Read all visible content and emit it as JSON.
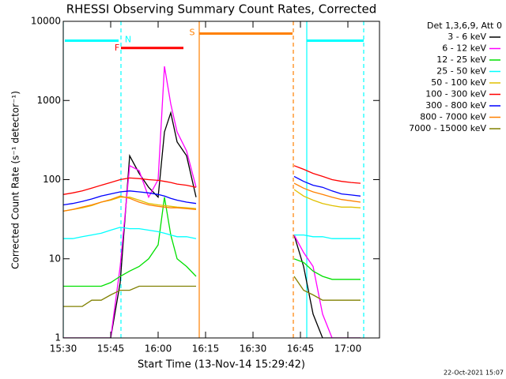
{
  "chart_data": {
    "type": "line",
    "title": "RHESSI Observing Summary Count Rates, Corrected",
    "x_label": "Start Time (13-Nov-14 15:29:42)",
    "y_label": "Corrected Count Rate (s⁻¹ detector⁻¹)",
    "legend_title": "Det 1,3,6,9, Att 0",
    "footer": "22-Oct-2021 15:07",
    "log_y": true,
    "xlim": [
      930,
      1030
    ],
    "ylim": [
      1,
      10000
    ],
    "xticks": [
      {
        "value": 930,
        "label": "15:30"
      },
      {
        "value": 945,
        "label": "15:45"
      },
      {
        "value": 960,
        "label": "16:00"
      },
      {
        "value": 975,
        "label": "16:15"
      },
      {
        "value": 990,
        "label": "16:30"
      },
      {
        "value": 1005,
        "label": "16:45"
      },
      {
        "value": 1020,
        "label": "17:00"
      }
    ],
    "yticks": [
      1,
      10,
      100,
      1000,
      10000
    ],
    "x": [
      930,
      933,
      936,
      939,
      942,
      945,
      948,
      951,
      954,
      957,
      960,
      962,
      964,
      966,
      969,
      972,
      990,
      1003,
      1006,
      1009,
      1012,
      1015,
      1018,
      1021,
      1024
    ],
    "series": [
      {
        "name": "3 - 6 keV",
        "color": "#000000",
        "values": [
          1,
          1,
          1,
          1,
          1,
          1,
          5,
          200,
          120,
          80,
          60,
          400,
          700,
          300,
          200,
          60,
          null,
          20,
          8,
          2,
          1,
          1,
          1,
          1,
          1
        ]
      },
      {
        "name": "6 - 12 keV",
        "color": "#ff00ff",
        "values": [
          1,
          1,
          1,
          1,
          1,
          1,
          8,
          150,
          130,
          60,
          100,
          2700,
          900,
          400,
          230,
          80,
          null,
          20,
          12,
          8,
          2,
          1,
          1,
          1,
          1
        ]
      },
      {
        "name": "12 - 25 keV",
        "color": "#00e000",
        "values": [
          4.5,
          4.5,
          4.5,
          4.5,
          4.5,
          5,
          6,
          7,
          8,
          10,
          15,
          60,
          20,
          10,
          8,
          6,
          null,
          10,
          9,
          7,
          6,
          5.5,
          5.5,
          5.5,
          5.5
        ]
      },
      {
        "name": "25 - 50 keV",
        "color": "#00ffff",
        "values": [
          18,
          18,
          19,
          20,
          21,
          23,
          25,
          24,
          24,
          23,
          22,
          21,
          20,
          19,
          19,
          18,
          null,
          20,
          20,
          19,
          19,
          18,
          18,
          18,
          18
        ]
      },
      {
        "name": "50 - 100 keV",
        "color": "#e0c000",
        "values": [
          40,
          42,
          44,
          47,
          52,
          55,
          60,
          60,
          55,
          50,
          48,
          47,
          46,
          45,
          44,
          43,
          null,
          75,
          62,
          55,
          50,
          47,
          45,
          45,
          44
        ]
      },
      {
        "name": "100 - 300 keV",
        "color": "#ff0000",
        "values": [
          65,
          68,
          72,
          78,
          85,
          92,
          100,
          105,
          103,
          100,
          98,
          95,
          92,
          88,
          85,
          80,
          null,
          150,
          135,
          120,
          110,
          100,
          95,
          92,
          90
        ]
      },
      {
        "name": "300 - 800 keV",
        "color": "#0000ff",
        "values": [
          48,
          50,
          53,
          57,
          62,
          66,
          70,
          72,
          70,
          68,
          65,
          62,
          58,
          55,
          52,
          50,
          null,
          110,
          95,
          85,
          80,
          72,
          66,
          64,
          62
        ]
      },
      {
        "name": "800 - 7000 keV",
        "color": "#ff8000",
        "values": [
          40,
          42,
          45,
          48,
          52,
          56,
          62,
          58,
          52,
          48,
          46,
          45,
          44,
          44,
          43,
          42,
          null,
          90,
          78,
          70,
          65,
          60,
          56,
          54,
          52
        ]
      },
      {
        "name": "7000 - 15000 keV",
        "color": "#808000",
        "values": [
          2.5,
          2.5,
          2.5,
          3,
          3,
          3.5,
          4,
          4,
          4.5,
          4.5,
          4.5,
          4.5,
          4.5,
          4.5,
          4.5,
          4.5,
          null,
          6,
          4,
          3.5,
          3,
          3,
          3,
          3,
          3
        ]
      }
    ],
    "vlines": [
      {
        "x": 930,
        "color": "#00ffff",
        "dashed": false
      },
      {
        "x": 948.25,
        "color": "#00ffff",
        "dashed": true
      },
      {
        "x": 973,
        "color": "#ff8000",
        "dashed": false
      },
      {
        "x": 1002.75,
        "color": "#ff8000",
        "dashed": true
      },
      {
        "x": 1007,
        "color": "#00ffff",
        "dashed": false
      },
      {
        "x": 1025,
        "color": "#00ffff",
        "dashed": true
      }
    ],
    "flags": [
      {
        "label": "N",
        "color": "#00ffff",
        "start": 930.5,
        "end": 947.5,
        "level": 5700
      },
      {
        "color": "#00ffff",
        "start": 1007,
        "end": 1025,
        "level": 5700
      },
      {
        "label": "S",
        "color": "#ff8000",
        "start": 973,
        "end": 1002.5,
        "level": 7000
      },
      {
        "label": "F",
        "color": "#ff0000",
        "start": 948.25,
        "end": 968,
        "level": 4600
      }
    ]
  }
}
